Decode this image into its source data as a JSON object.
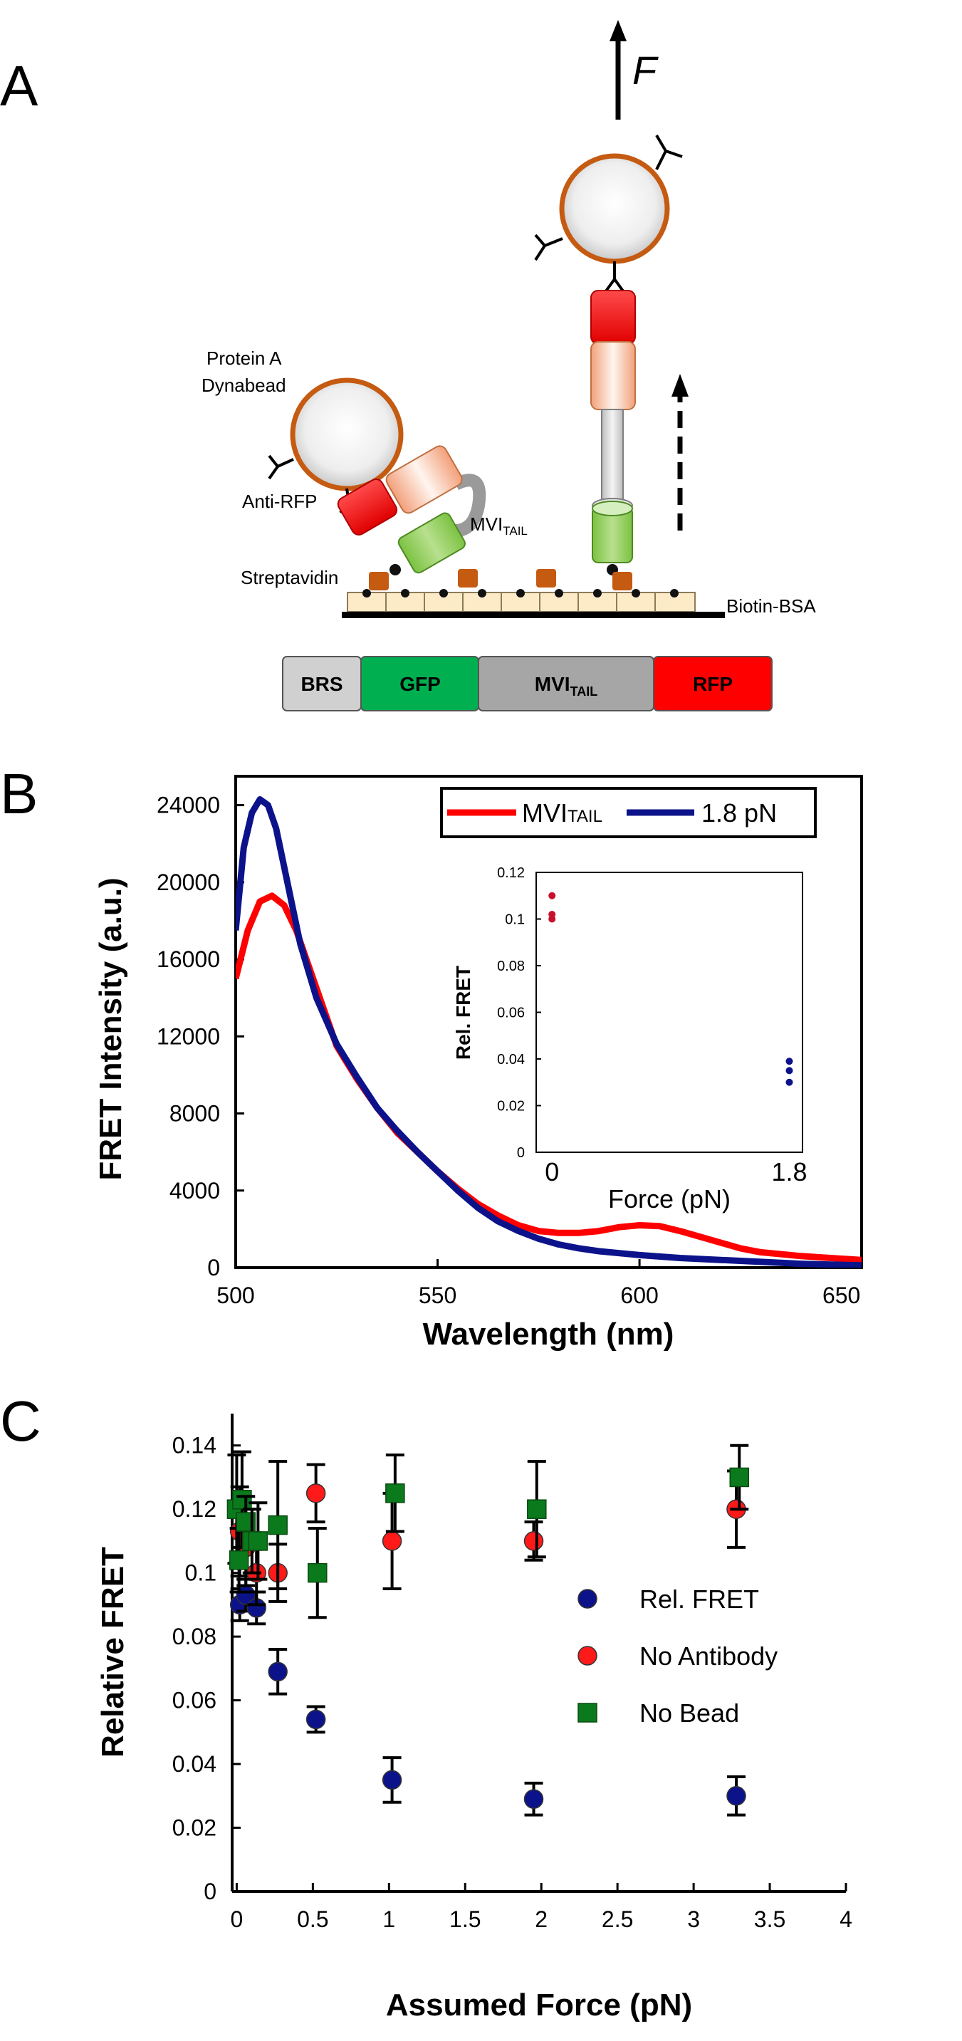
{
  "panels": {
    "a": {
      "label": "A",
      "force_label": "F",
      "labels": {
        "protein_a": "Protein A",
        "dynabead": "Dynabead",
        "anti_rfp": "Anti-RFP",
        "mvi_tail_main": "MVI",
        "mvi_tail_sub": "TAIL",
        "streptavidin": "Streptavidin",
        "biotin_bsa": "Biotin-BSA"
      },
      "construct": [
        {
          "name": "BRS",
          "sub": "",
          "color": "#d0d0d0",
          "text_color": "#111111"
        },
        {
          "name": "GFP",
          "sub": "",
          "color": "#00b050",
          "text_color": "#ffffff"
        },
        {
          "name": "MVI",
          "sub": "TAIL",
          "color": "#a6a6a6",
          "text_color": "#ffffff"
        },
        {
          "name": "RFP",
          "sub": "",
          "color": "#ff0000",
          "text_color": "#ffffff"
        }
      ]
    },
    "b": {
      "label": "B"
    },
    "c": {
      "label": "C"
    }
  },
  "chart_data": [
    {
      "id": "spectrum",
      "type": "line",
      "title": "",
      "xlabel": "Wavelength (nm)",
      "ylabel": "FRET Intensity (a.u.)",
      "xlim": [
        500,
        655
      ],
      "ylim": [
        0,
        25500
      ],
      "xticks": [
        500,
        550,
        600,
        650
      ],
      "yticks": [
        0,
        4000,
        8000,
        12000,
        16000,
        20000,
        24000
      ],
      "legend": "top-right",
      "series": [
        {
          "name": "MVITAIL",
          "legend_main": "MVI",
          "legend_sub": "TAIL",
          "color": "#ff0000",
          "x": [
            500,
            503,
            506,
            509,
            512,
            515,
            520,
            525,
            530,
            535,
            540,
            545,
            550,
            555,
            560,
            565,
            570,
            575,
            580,
            585,
            590,
            595,
            600,
            605,
            610,
            615,
            620,
            625,
            630,
            640,
            655
          ],
          "y": [
            15000,
            17500,
            19000,
            19300,
            18800,
            17500,
            14500,
            11500,
            9800,
            8300,
            7000,
            6000,
            5000,
            4100,
            3300,
            2700,
            2200,
            1900,
            1800,
            1800,
            1900,
            2100,
            2200,
            2150,
            1900,
            1600,
            1300,
            1000,
            800,
            600,
            400
          ]
        },
        {
          "name": "1.8 pN",
          "legend_main": "1.8 pN",
          "legend_sub": "",
          "color": "#0c138a",
          "x": [
            500,
            502,
            504,
            506,
            508,
            510,
            513,
            516,
            520,
            525,
            530,
            535,
            540,
            545,
            550,
            555,
            560,
            565,
            570,
            575,
            580,
            585,
            590,
            600,
            610,
            620,
            630,
            640,
            655
          ],
          "y": [
            17500,
            21800,
            23600,
            24300,
            24000,
            22800,
            19800,
            16800,
            14000,
            11600,
            9900,
            8300,
            7100,
            6000,
            5000,
            4000,
            3100,
            2400,
            1900,
            1500,
            1200,
            1000,
            850,
            650,
            500,
            400,
            300,
            200,
            120
          ]
        }
      ],
      "inset": {
        "xlabel": "Force (pN)",
        "ylabel": "Rel. FRET",
        "xlim": [
          -0.12,
          1.9
        ],
        "ylim": [
          0,
          0.12
        ],
        "xtick_labels": [
          {
            "v": 0,
            "t": "0"
          },
          {
            "v": 1.8,
            "t": "1.8"
          }
        ],
        "yticks": [
          0,
          0.02,
          0.04,
          0.06,
          0.08,
          0.1,
          0.12
        ],
        "groups": [
          {
            "name": "0 pN",
            "color": "#c8102e",
            "x": [
              0.0,
              0.0,
              0.0
            ],
            "y": [
              0.11,
              0.102,
              0.1
            ]
          },
          {
            "name": "1.8 pN",
            "color": "#0c138a",
            "x": [
              1.8,
              1.8,
              1.8
            ],
            "y": [
              0.039,
              0.035,
              0.03
            ]
          }
        ]
      }
    },
    {
      "id": "relative_fret",
      "type": "scatter",
      "title": "",
      "xlabel": "Assumed Force (pN)",
      "ylabel": "Relative FRET",
      "xlim": [
        -0.03,
        4
      ],
      "ylim": [
        0,
        0.15
      ],
      "xticks": [
        0,
        0.5,
        1,
        1.5,
        2,
        2.5,
        3,
        3.5,
        4
      ],
      "xtick_labels": [
        "0",
        "0.5",
        "1",
        "1.5",
        "2",
        "2.5",
        "3",
        "3.5",
        "4"
      ],
      "yticks": [
        0,
        0.02,
        0.04,
        0.06,
        0.08,
        0.1,
        0.12,
        0.14
      ],
      "ytick_labels": [
        "0",
        "0.02",
        "0.04",
        "0.06",
        "0.08",
        "0.1",
        "0.12",
        "0.14"
      ],
      "legend": "right",
      "series": [
        {
          "name": "Rel. FRET",
          "marker": "circle",
          "color": "#0c138a",
          "x": [
            0.02,
            0.06,
            0.13,
            0.27,
            0.52,
            1.02,
            1.95,
            3.28
          ],
          "y": [
            0.09,
            0.093,
            0.089,
            0.069,
            0.054,
            0.035,
            0.029,
            0.03
          ],
          "err": [
            0.005,
            0.005,
            0.005,
            0.007,
            0.004,
            0.007,
            0.005,
            0.006
          ]
        },
        {
          "name": "No Antibody",
          "marker": "circle",
          "color": "#ff1a1a",
          "x": [
            0.02,
            0.06,
            0.13,
            0.27,
            0.52,
            1.02,
            1.95,
            3.28
          ],
          "y": [
            0.113,
            0.108,
            0.1,
            0.1,
            0.125,
            0.11,
            0.11,
            0.12
          ],
          "err": [
            0.014,
            0.012,
            0.01,
            0.009,
            0.009,
            0.015,
            0.006,
            0.012
          ]
        },
        {
          "name": "No Bead",
          "marker": "square",
          "color": "#0a7a1d",
          "x": [
            0.0,
            0.015,
            0.035,
            0.06,
            0.1,
            0.14,
            0.27,
            0.53,
            1.04,
            1.97,
            3.3
          ],
          "y": [
            0.12,
            0.104,
            0.123,
            0.116,
            0.11,
            0.11,
            0.115,
            0.1,
            0.125,
            0.12,
            0.13
          ],
          "err": [
            0.017,
            0.01,
            0.015,
            0.008,
            0.01,
            0.012,
            0.02,
            0.014,
            0.012,
            0.015,
            0.01
          ]
        }
      ]
    }
  ]
}
